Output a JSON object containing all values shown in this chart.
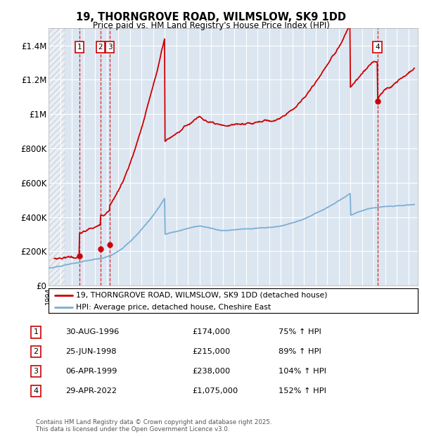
{
  "title": "19, THORNGROVE ROAD, WILMSLOW, SK9 1DD",
  "subtitle": "Price paid vs. HM Land Registry's House Price Index (HPI)",
  "ylim": [
    0,
    1500000
  ],
  "yticks": [
    0,
    200000,
    400000,
    600000,
    800000,
    1000000,
    1200000,
    1400000
  ],
  "ytick_labels": [
    "£0",
    "£200K",
    "£400K",
    "£600K",
    "£800K",
    "£1M",
    "£1.2M",
    "£1.4M"
  ],
  "xlim_start": 1994.0,
  "xlim_end": 2025.8,
  "background_color": "#dce6f1",
  "hatch_region_end": 1995.4,
  "red_line_color": "#cc0000",
  "blue_line_color": "#7bafd4",
  "transaction_dates": [
    1996.66,
    1998.48,
    1999.27,
    2022.33
  ],
  "transaction_prices": [
    174000,
    215000,
    238000,
    1075000
  ],
  "transaction_labels": [
    "1",
    "2",
    "3",
    "4"
  ],
  "legend_label_red": "19, THORNGROVE ROAD, WILMSLOW, SK9 1DD (detached house)",
  "legend_label_blue": "HPI: Average price, detached house, Cheshire East",
  "table_data": [
    [
      "1",
      "30-AUG-1996",
      "£174,000",
      "75% ↑ HPI"
    ],
    [
      "2",
      "25-JUN-1998",
      "£215,000",
      "89% ↑ HPI"
    ],
    [
      "3",
      "06-APR-1999",
      "£238,000",
      "104% ↑ HPI"
    ],
    [
      "4",
      "29-APR-2022",
      "£1,075,000",
      "152% ↑ HPI"
    ]
  ],
  "footer": "Contains HM Land Registry data © Crown copyright and database right 2025.\nThis data is licensed under the Open Government Licence v3.0."
}
